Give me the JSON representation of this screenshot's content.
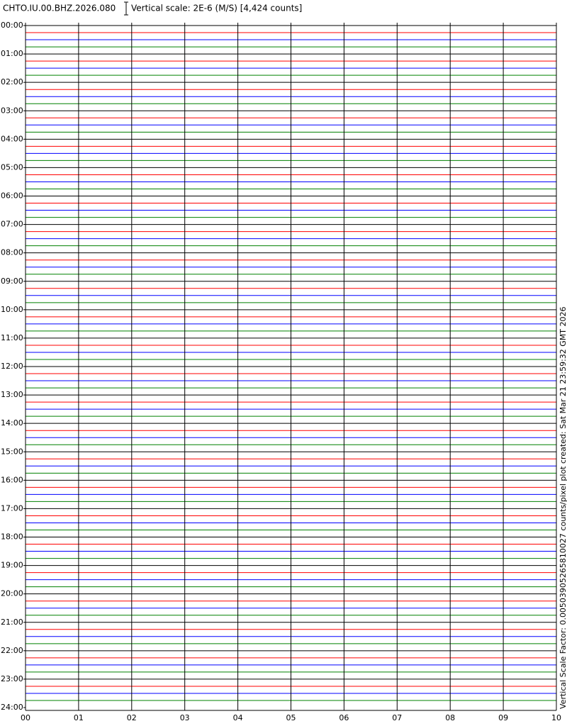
{
  "chart_data": {
    "type": "helicorder",
    "title": "CHTO.IU.00.BHZ.2026.080",
    "subtitle": "Vertical scale: 2E-6 (M/S) [4,424 counts]",
    "side_note": "Vertical Scale Factor: 0.00503905265810027 counts/pixel plot created: Sat Mar 21 23:59:32 GMT 2026",
    "colors": [
      "#000000",
      "#ff0000",
      "#0000ff",
      "#008000"
    ],
    "xlim": [
      0,
      10
    ],
    "xticks": [
      {
        "value": 0,
        "label": "00"
      },
      {
        "value": 1,
        "label": "01"
      },
      {
        "value": 2,
        "label": "02"
      },
      {
        "value": 3,
        "label": "03"
      },
      {
        "value": 4,
        "label": "04"
      },
      {
        "value": 5,
        "label": "05"
      },
      {
        "value": 6,
        "label": "06"
      },
      {
        "value": 7,
        "label": "07"
      },
      {
        "value": 8,
        "label": "08"
      },
      {
        "value": 9,
        "label": "09"
      },
      {
        "value": 10,
        "label": "10"
      }
    ],
    "ylim": [
      0,
      24
    ],
    "yticks": [
      {
        "value": 0,
        "label": "00:00"
      },
      {
        "value": 1,
        "label": "01:00"
      },
      {
        "value": 2,
        "label": "02:00"
      },
      {
        "value": 3,
        "label": "03:00"
      },
      {
        "value": 4,
        "label": "04:00"
      },
      {
        "value": 5,
        "label": "05:00"
      },
      {
        "value": 6,
        "label": "06:00"
      },
      {
        "value": 7,
        "label": "07:00"
      },
      {
        "value": 8,
        "label": "08:00"
      },
      {
        "value": 9,
        "label": "09:00"
      },
      {
        "value": 10,
        "label": "10:00"
      },
      {
        "value": 11,
        "label": "11:00"
      },
      {
        "value": 12,
        "label": "12:00"
      },
      {
        "value": 13,
        "label": "13:00"
      },
      {
        "value": 14,
        "label": "14:00"
      },
      {
        "value": 15,
        "label": "15:00"
      },
      {
        "value": 16,
        "label": "16:00"
      },
      {
        "value": 17,
        "label": "17:00"
      },
      {
        "value": 18,
        "label": "18:00"
      },
      {
        "value": 19,
        "label": "19:00"
      },
      {
        "value": 20,
        "label": "20:00"
      },
      {
        "value": 21,
        "label": "21:00"
      },
      {
        "value": 22,
        "label": "22:00"
      },
      {
        "value": 23,
        "label": "23:00"
      },
      {
        "value": 24,
        "label": "24:00"
      }
    ]
  }
}
